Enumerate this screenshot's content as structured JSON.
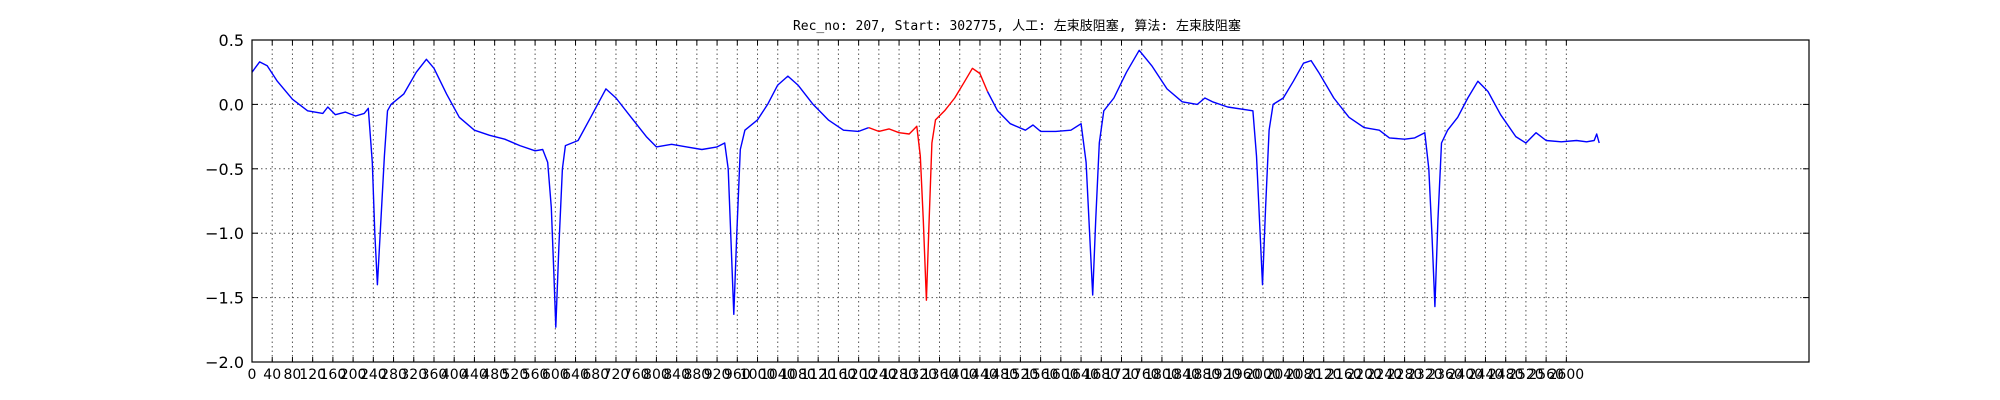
{
  "chart_data": {
    "type": "line",
    "title": "Rec_no: 207, Start: 302775, 人工: 左束肢阻塞, 算法: 左束肢阻塞",
    "xlabel": "",
    "ylabel": "",
    "xlim": [
      0,
      3080
    ],
    "ylim": [
      -2.0,
      0.5
    ],
    "yticks": [
      0.5,
      0.0,
      -0.5,
      -1.0,
      -1.5,
      -2.0
    ],
    "ytick_labels": [
      "0.5",
      "0.0",
      "−0.5",
      "−1.0",
      "−1.5",
      "−2.0"
    ],
    "xticks": [
      0,
      40,
      80,
      120,
      160,
      200,
      240,
      280,
      320,
      360,
      400,
      440,
      480,
      520,
      560,
      600,
      640,
      680,
      720,
      760,
      800,
      840,
      880,
      920,
      960,
      1000,
      1040,
      1080,
      1120,
      1160,
      1200,
      1240,
      1280,
      1320,
      1360,
      1400,
      1440,
      1480,
      1520,
      1560,
      1600,
      1640,
      1680,
      1720,
      1760,
      1800,
      1840,
      1880,
      1920,
      1960,
      2000,
      2040,
      2080,
      2120,
      2160,
      2200,
      2240,
      2280,
      2320,
      2360,
      2400,
      2440,
      2480,
      2520,
      2560,
      2600
    ],
    "grid": true,
    "colors": {
      "normal": "#0000ff",
      "highlight": "#ff0000",
      "grid": "#555555"
    },
    "series": [
      {
        "color": "#0000ff",
        "points": [
          [
            0,
            0.25
          ],
          [
            15,
            0.33
          ],
          [
            30,
            0.3
          ],
          [
            50,
            0.18
          ],
          [
            80,
            0.04
          ],
          [
            110,
            -0.05
          ],
          [
            140,
            -0.07
          ],
          [
            150,
            -0.02
          ],
          [
            165,
            -0.08
          ],
          [
            185,
            -0.06
          ],
          [
            205,
            -0.09
          ],
          [
            222,
            -0.07
          ],
          [
            230,
            -0.03
          ],
          [
            238,
            -0.45
          ],
          [
            243,
            -1.0
          ],
          [
            248,
            -1.4
          ],
          [
            255,
            -0.9
          ],
          [
            262,
            -0.4
          ],
          [
            268,
            -0.05
          ],
          [
            275,
            0.0
          ],
          [
            300,
            0.08
          ],
          [
            325,
            0.25
          ],
          [
            345,
            0.35
          ],
          [
            360,
            0.28
          ],
          [
            385,
            0.08
          ],
          [
            410,
            -0.1
          ],
          [
            440,
            -0.2
          ],
          [
            470,
            -0.24
          ],
          [
            500,
            -0.27
          ],
          [
            530,
            -0.32
          ],
          [
            560,
            -0.36
          ],
          [
            575,
            -0.35
          ],
          [
            585,
            -0.45
          ],
          [
            592,
            -0.8
          ],
          [
            597,
            -1.3
          ],
          [
            601,
            -1.73
          ],
          [
            607,
            -1.1
          ],
          [
            614,
            -0.5
          ],
          [
            620,
            -0.32
          ],
          [
            645,
            -0.28
          ],
          [
            670,
            -0.1
          ],
          [
            700,
            0.12
          ],
          [
            720,
            0.05
          ],
          [
            750,
            -0.1
          ],
          [
            780,
            -0.25
          ],
          [
            800,
            -0.33
          ],
          [
            830,
            -0.31
          ],
          [
            860,
            -0.33
          ],
          [
            890,
            -0.35
          ],
          [
            920,
            -0.33
          ],
          [
            935,
            -0.3
          ],
          [
            942,
            -0.5
          ],
          [
            948,
            -1.1
          ],
          [
            953,
            -1.63
          ],
          [
            959,
            -1.0
          ],
          [
            966,
            -0.35
          ],
          [
            975,
            -0.2
          ],
          [
            1000,
            -0.12
          ],
          [
            1020,
            0.0
          ],
          [
            1040,
            0.15
          ],
          [
            1060,
            0.22
          ],
          [
            1080,
            0.15
          ],
          [
            1110,
            0.0
          ],
          [
            1140,
            -0.12
          ],
          [
            1170,
            -0.2
          ],
          [
            1200,
            -0.21
          ],
          [
            1220,
            -0.18
          ]
        ]
      },
      {
        "color": "#ff0000",
        "points": [
          [
            1220,
            -0.18
          ],
          [
            1240,
            -0.21
          ],
          [
            1260,
            -0.19
          ],
          [
            1280,
            -0.22
          ],
          [
            1300,
            -0.23
          ],
          [
            1315,
            -0.17
          ],
          [
            1322,
            -0.4
          ],
          [
            1328,
            -0.9
          ],
          [
            1334,
            -1.52
          ],
          [
            1339,
            -0.95
          ],
          [
            1345,
            -0.3
          ],
          [
            1352,
            -0.12
          ],
          [
            1370,
            -0.05
          ],
          [
            1390,
            0.05
          ],
          [
            1410,
            0.18
          ],
          [
            1425,
            0.28
          ],
          [
            1440,
            0.24
          ],
          [
            1455,
            0.1
          ]
        ]
      },
      {
        "color": "#0000ff",
        "points": [
          [
            1455,
            0.1
          ],
          [
            1475,
            -0.05
          ],
          [
            1500,
            -0.15
          ],
          [
            1530,
            -0.2
          ],
          [
            1545,
            -0.16
          ],
          [
            1560,
            -0.21
          ],
          [
            1590,
            -0.21
          ],
          [
            1620,
            -0.2
          ],
          [
            1640,
            -0.15
          ],
          [
            1650,
            -0.45
          ],
          [
            1657,
            -1.0
          ],
          [
            1663,
            -1.48
          ],
          [
            1669,
            -0.9
          ],
          [
            1676,
            -0.3
          ],
          [
            1685,
            -0.05
          ],
          [
            1705,
            0.05
          ],
          [
            1730,
            0.25
          ],
          [
            1755,
            0.42
          ],
          [
            1780,
            0.3
          ],
          [
            1810,
            0.12
          ],
          [
            1840,
            0.02
          ],
          [
            1870,
            0.0
          ],
          [
            1885,
            0.05
          ],
          [
            1900,
            0.02
          ],
          [
            1930,
            -0.02
          ],
          [
            1980,
            -0.05
          ],
          [
            1987,
            -0.4
          ],
          [
            1993,
            -0.9
          ],
          [
            1999,
            -1.4
          ],
          [
            2005,
            -0.8
          ],
          [
            2012,
            -0.2
          ],
          [
            2020,
            0.0
          ],
          [
            2040,
            0.05
          ],
          [
            2060,
            0.18
          ],
          [
            2080,
            0.32
          ],
          [
            2095,
            0.34
          ],
          [
            2110,
            0.25
          ],
          [
            2140,
            0.05
          ],
          [
            2170,
            -0.1
          ],
          [
            2200,
            -0.18
          ],
          [
            2230,
            -0.2
          ],
          [
            2250,
            -0.26
          ],
          [
            2280,
            -0.27
          ],
          [
            2300,
            -0.26
          ],
          [
            2320,
            -0.22
          ],
          [
            2328,
            -0.5
          ],
          [
            2334,
            -1.0
          ],
          [
            2340,
            -1.57
          ],
          [
            2346,
            -0.9
          ],
          [
            2353,
            -0.3
          ],
          [
            2365,
            -0.2
          ],
          [
            2385,
            -0.1
          ],
          [
            2405,
            0.05
          ],
          [
            2425,
            0.18
          ],
          [
            2445,
            0.1
          ],
          [
            2470,
            -0.08
          ],
          [
            2500,
            -0.25
          ],
          [
            2520,
            -0.3
          ],
          [
            2540,
            -0.22
          ],
          [
            2560,
            -0.28
          ],
          [
            2590,
            -0.29
          ],
          [
            2620,
            -0.28
          ],
          [
            2640,
            -0.29
          ],
          [
            2655,
            -0.28
          ],
          [
            2660,
            -0.23
          ],
          [
            2665,
            -0.3
          ]
        ]
      }
    ]
  }
}
